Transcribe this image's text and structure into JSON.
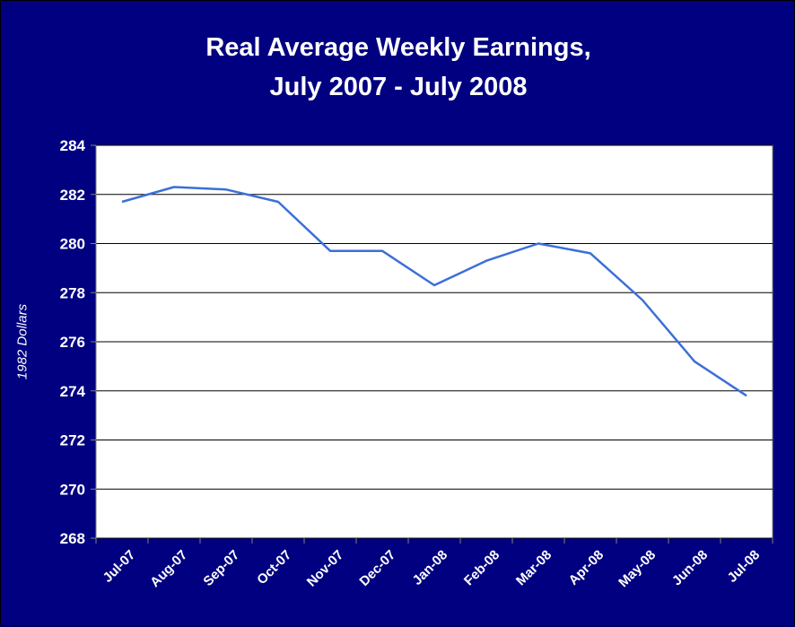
{
  "chart_data": {
    "type": "line",
    "title": [
      "Real Average Weekly Earnings,",
      "July 2007 - July 2008"
    ],
    "ylabel": "1982 Dollars",
    "xlabel": "",
    "ylim": [
      268,
      284
    ],
    "yticks": [
      268,
      270,
      272,
      274,
      276,
      278,
      280,
      282,
      284
    ],
    "grid": true,
    "categories": [
      "Jul-07",
      "Aug-07",
      "Sep-07",
      "Oct-07",
      "Nov-07",
      "Dec-07",
      "Jan-08",
      "Feb-08",
      "Mar-08",
      "Apr-08",
      "May-08",
      "Jun-08",
      "Jul-08"
    ],
    "series": [
      {
        "name": "",
        "values": [
          281.7,
          282.3,
          282.2,
          281.7,
          279.7,
          279.7,
          278.3,
          279.3,
          280.0,
          279.6,
          277.7,
          275.2,
          273.8
        ]
      }
    ],
    "colors": {
      "background": "#000080",
      "plot_area": "#ffffff",
      "line": "#3c6fd8",
      "grid": "#000000",
      "text": "#ffffff"
    }
  }
}
